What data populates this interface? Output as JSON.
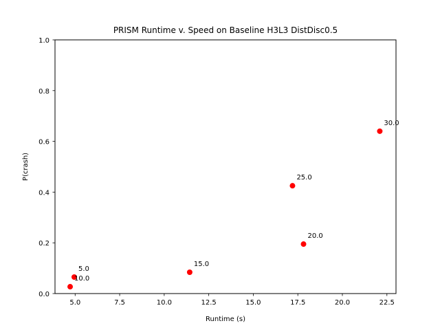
{
  "chart_data": {
    "type": "scatter",
    "title": "PRISM Runtime v. Speed on Baseline H3L3 DistDisc0.5",
    "xlabel": "Runtime (s)",
    "ylabel": "P(crash)",
    "xlim": [
      3.87,
      23.01
    ],
    "ylim": [
      0,
      1
    ],
    "x_ticks": [
      "5.0",
      "7.5",
      "10.0",
      "12.5",
      "15.0",
      "17.5",
      "20.0",
      "22.5"
    ],
    "x_tick_values": [
      5.0,
      7.5,
      10.0,
      12.5,
      15.0,
      17.5,
      20.0,
      22.5
    ],
    "y_ticks": [
      "0.0",
      "0.2",
      "0.4",
      "0.6",
      "0.8",
      "1.0"
    ],
    "y_tick_values": [
      0.0,
      0.2,
      0.4,
      0.6,
      0.8,
      1.0
    ],
    "grid": false,
    "marker_color": "#ff0000",
    "points": [
      {
        "label": "5.0",
        "x": 4.95,
        "y": 0.065
      },
      {
        "label": "10.0",
        "x": 4.72,
        "y": 0.027
      },
      {
        "label": "15.0",
        "x": 11.43,
        "y": 0.084
      },
      {
        "label": "20.0",
        "x": 17.82,
        "y": 0.195
      },
      {
        "label": "25.0",
        "x": 17.2,
        "y": 0.425
      },
      {
        "label": "30.0",
        "x": 22.1,
        "y": 0.64
      }
    ]
  }
}
